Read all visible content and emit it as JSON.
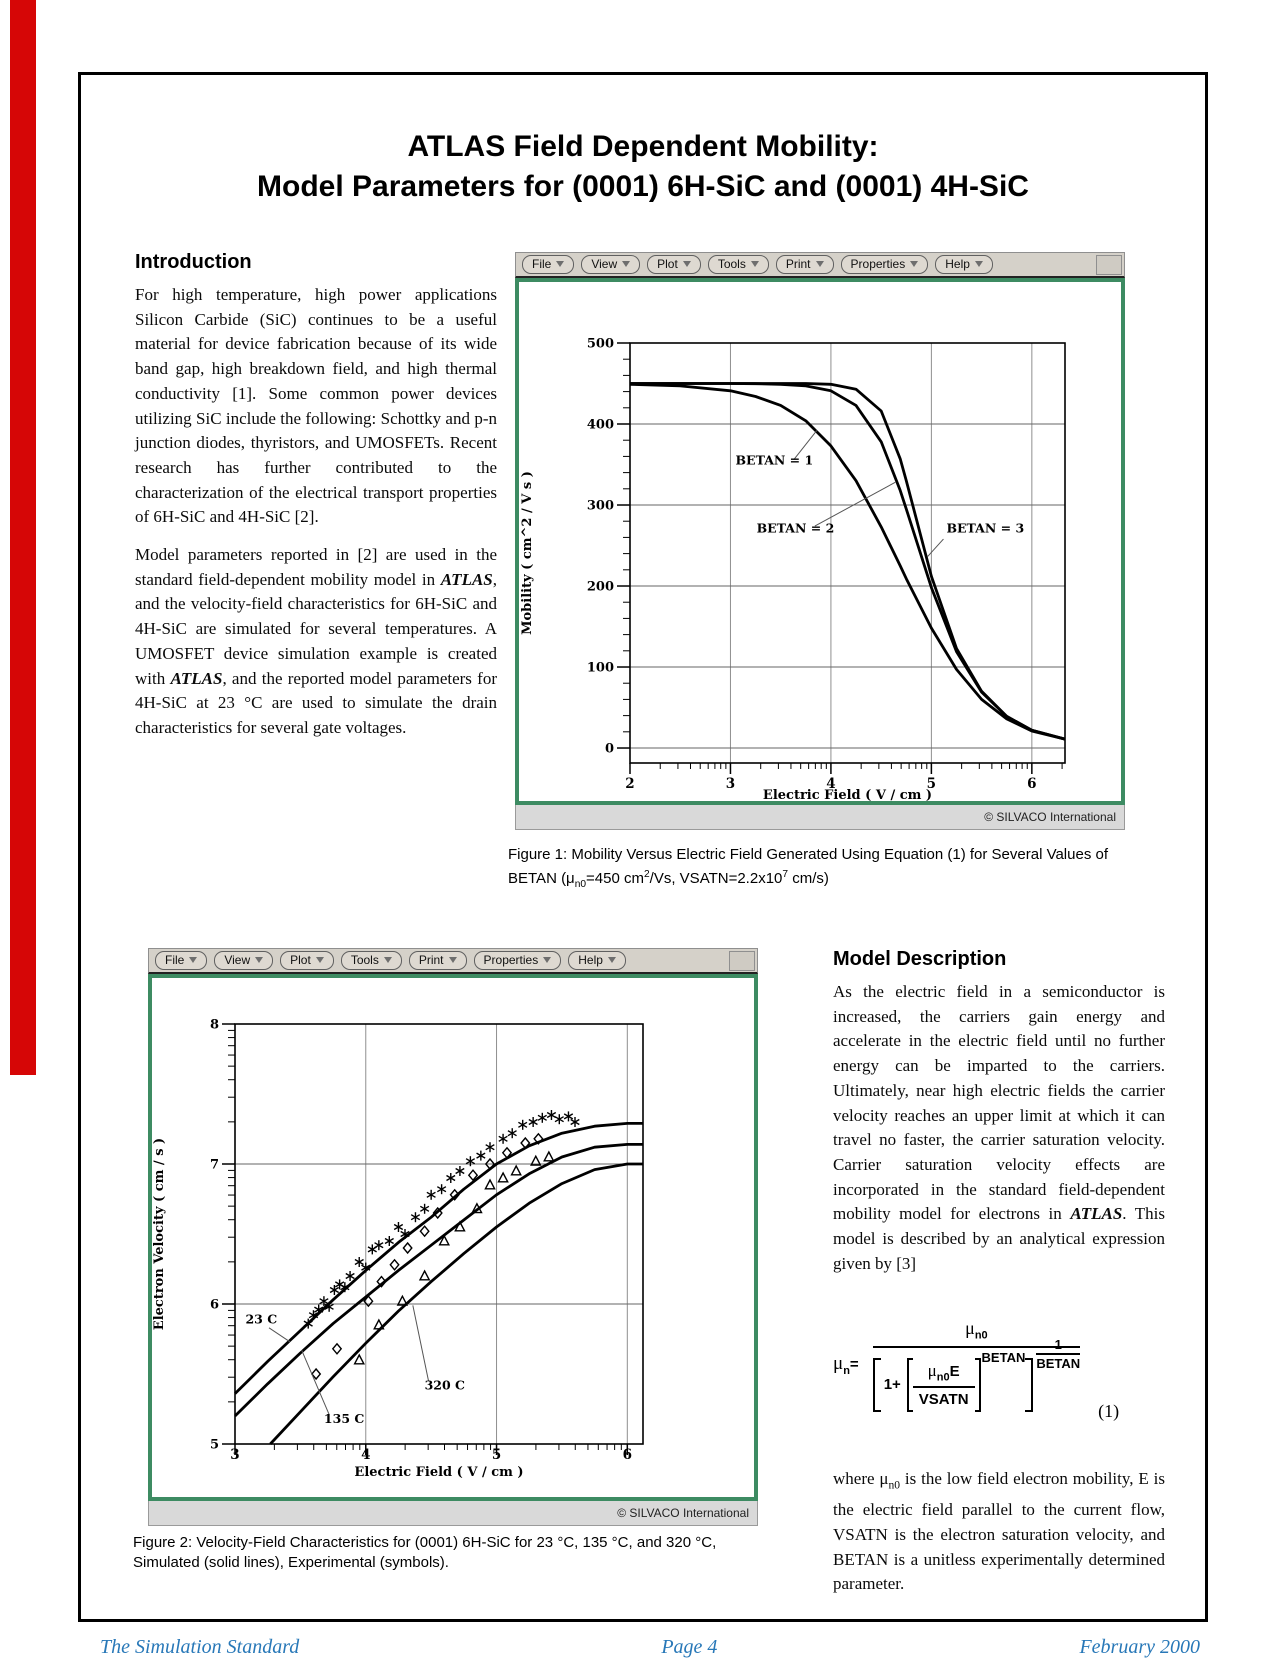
{
  "page": {
    "title1": "ATLAS Field Dependent Mobility:",
    "title2": "Model Parameters for (0001) 6H-SiC and (0001) 4H-SiC",
    "footer": {
      "left": "The Simulation Standard",
      "center": "Page 4",
      "right": "February 2000"
    }
  },
  "intro": {
    "heading": "Introduction",
    "p1": "For high temperature, high power applications Silicon Carbide (SiC) continues to be a useful material for device fabrication because of its wide band gap, high breakdown field, and high thermal conductivity [1].  Some common power devices utilizing SiC include the following:  Schottky and p-n junction diodes, thyristors, and UMOSFETs.  Recent research has further contributed to the characterization of the electrical transport properties of 6H-SiC and 4H-SiC [2].",
    "p2": [
      "Model parameters reported in [2] are used in the standard field-dependent mobility model in ",
      {
        "t": "ATLAS",
        "b": true
      },
      ", and the velocity-field characteristics for 6H-SiC and 4H-SiC are simulated for several temperatures. A UMOSFET device simulation example is created with ",
      {
        "t": "ATLAS",
        "b": true
      },
      ", and the reported model parameters for 4H-SiC at 23 °C are used to simulate the drain characteristics for several gate voltages."
    ]
  },
  "model": {
    "heading": "Model Description",
    "p1": [
      "As the electric field in a semiconductor is increased, the carriers gain energy and accelerate in the electric field until no further energy can be imparted to the carriers. Ultimately, near high electric fields the carrier velocity reaches an upper limit at which it can travel no faster, the carrier saturation velocity. Carrier saturation velocity effects are incorporated in the standard field-dependent mobility model for electrons in ",
      {
        "t": "ATLAS",
        "b": true
      },
      ".  This model is described by an analytical expression given by [3]"
    ],
    "where": [
      "where μ",
      {
        "t": "n0",
        "sub": true
      },
      " is the low field electron mobility, E is the electric field parallel to the current flow, VSATN is the electron saturation velocity, and BETAN is a unitless experimentally determined parameter."
    ]
  },
  "equation": {
    "mu": "μ",
    "n": "n",
    "equals": "=",
    "n0": "n0",
    "one_plus": "1+",
    "E": "E",
    "vsatn": "VSATN",
    "betan": "BETAN",
    "one": "1",
    "number": "(1)"
  },
  "plot_window": {
    "menus": [
      "File",
      "View",
      "Plot",
      "Tools",
      "Print",
      "Properties",
      "Help"
    ],
    "status": "© SILVACO International"
  },
  "captions": {
    "fig1": [
      "Figure 1: Mobility Versus Electric Field Generated Using Equation (1) for Several Values of BETAN  (μ",
      {
        "t": "n0",
        "sub": true
      },
      "=450 cm",
      {
        "t": "2",
        "sup": true
      },
      "/Vs, VSATN=2.2x10",
      {
        "t": "7",
        "sup": true
      },
      " cm/s)"
    ],
    "fig2": "Figure 2: Velocity-Field Characteristics for (0001) 6H-SiC for 23 °C, 135 °C, and 320 °C, Simulated (solid lines), Experimental (symbols)."
  },
  "chart_data": [
    {
      "type": "line",
      "title": "Mobility versus electric field for several values of BETAN",
      "xlabel": "Electric Field ( V / cm )",
      "ylabel": "Mobility ( cm^2 / V s )",
      "x_scale": "log10",
      "xlim": [
        2,
        6.33
      ],
      "ylim": [
        -18.5,
        500
      ],
      "xticks": [
        2,
        3,
        4,
        5,
        6
      ],
      "yticks": [
        0,
        100,
        200,
        300,
        400,
        500
      ],
      "y_minor": "linear",
      "y_minor_step": 20,
      "x": [
        2,
        2.5,
        3,
        3.25,
        3.5,
        3.75,
        4,
        4.25,
        4.5,
        4.69,
        4.75,
        5,
        5.25,
        5.5,
        5.75,
        6,
        6.33
      ],
      "series": [
        {
          "name": "BETAN = 1",
          "values": [
            449,
            447,
            441,
            434,
            423,
            404,
            373,
            330,
            273,
            225,
            209,
            148,
            97,
            60,
            36,
            21,
            11
          ]
        },
        {
          "name": "BETAN = 2",
          "values": [
            450,
            450,
            450,
            449.7,
            449,
            447,
            441,
            423,
            378,
            318,
            295,
            198,
            119,
            69,
            39,
            22,
            11
          ]
        },
        {
          "name": "BETAN = 3",
          "values": [
            450,
            450,
            450,
            450,
            450,
            450,
            449,
            443,
            416,
            357,
            330,
            212,
            123,
            70,
            39,
            22,
            11
          ]
        }
      ],
      "annotations": [
        {
          "text": "BETAN = 1",
          "tx": 3.05,
          "ty": 350,
          "line": [
            3.63,
            356,
            3.86,
            392
          ]
        },
        {
          "text": "BETAN = 2",
          "tx": 3.26,
          "ty": 266,
          "line": [
            3.84,
            274,
            4.64,
            328
          ]
        },
        {
          "text": "BETAN = 3",
          "tx": 5.15,
          "ty": 266,
          "line": [
            5.12,
            258,
            4.96,
            236
          ]
        }
      ]
    },
    {
      "type": "line",
      "title": "Velocity-field characteristics for (0001) 6H-SiC",
      "xlabel": "Electric Field ( V / cm )",
      "ylabel": "Electron Velocity ( cm / s )",
      "x_scale": "log10",
      "y_scale": "log10",
      "xlim": [
        3,
        6.12
      ],
      "ylim": [
        5,
        8
      ],
      "xticks": [
        3,
        4,
        5,
        6
      ],
      "yticks": [
        5,
        6,
        7,
        8
      ],
      "y_minor": "log",
      "series": [
        {
          "name": "23 C",
          "symbol": "asterisk",
          "x": [
            3.0,
            3.25,
            3.5,
            3.75,
            4.0,
            4.25,
            4.5,
            4.75,
            5.0,
            5.25,
            5.5,
            5.75,
            6.0,
            6.12
          ],
          "y": [
            5.36,
            5.59,
            5.81,
            6.03,
            6.24,
            6.44,
            6.62,
            6.82,
            7.0,
            7.13,
            7.22,
            7.27,
            7.29,
            7.29
          ],
          "points": [
            [
              3.56,
              5.86
            ],
            [
              3.6,
              5.92
            ],
            [
              3.64,
              5.96
            ],
            [
              3.68,
              6.02
            ],
            [
              3.72,
              5.98
            ],
            [
              3.76,
              6.1
            ],
            [
              3.8,
              6.14
            ],
            [
              3.84,
              6.12
            ],
            [
              3.88,
              6.2
            ],
            [
              3.95,
              6.3
            ],
            [
              4.0,
              6.26
            ],
            [
              4.05,
              6.39
            ],
            [
              4.1,
              6.42
            ],
            [
              4.18,
              6.45
            ],
            [
              4.25,
              6.55
            ],
            [
              4.3,
              6.5
            ],
            [
              4.38,
              6.62
            ],
            [
              4.45,
              6.68
            ],
            [
              4.5,
              6.78
            ],
            [
              4.58,
              6.82
            ],
            [
              4.65,
              6.9
            ],
            [
              4.72,
              6.95
            ],
            [
              4.8,
              7.02
            ],
            [
              4.88,
              7.06
            ],
            [
              4.95,
              7.12
            ],
            [
              5.05,
              7.18
            ],
            [
              5.12,
              7.22
            ],
            [
              5.2,
              7.28
            ],
            [
              5.28,
              7.3
            ],
            [
              5.35,
              7.33
            ],
            [
              5.42,
              7.35
            ],
            [
              5.48,
              7.32
            ],
            [
              5.55,
              7.34
            ],
            [
              5.6,
              7.3
            ]
          ]
        },
        {
          "name": "135 C",
          "symbol": "diamond",
          "x": [
            3.0,
            3.25,
            3.5,
            3.75,
            4.0,
            4.25,
            4.5,
            4.75,
            5.0,
            5.25,
            5.5,
            5.75,
            6.0,
            6.12
          ],
          "y": [
            5.2,
            5.43,
            5.65,
            5.86,
            6.05,
            6.24,
            6.42,
            6.6,
            6.78,
            6.93,
            7.05,
            7.12,
            7.14,
            7.14
          ],
          "points": [
            [
              3.62,
              5.5
            ],
            [
              3.78,
              5.68
            ],
            [
              4.02,
              6.02
            ],
            [
              4.12,
              6.16
            ],
            [
              4.22,
              6.28
            ],
            [
              4.32,
              6.4
            ],
            [
              4.45,
              6.52
            ],
            [
              4.55,
              6.65
            ],
            [
              4.68,
              6.78
            ],
            [
              4.82,
              6.92
            ],
            [
              4.95,
              7.0
            ],
            [
              5.08,
              7.08
            ],
            [
              5.22,
              7.15
            ],
            [
              5.32,
              7.18
            ]
          ]
        },
        {
          "name": "320 C",
          "symbol": "triangle",
          "x": [
            3.27,
            3.5,
            3.75,
            4.0,
            4.25,
            4.5,
            4.75,
            5.0,
            5.25,
            5.5,
            5.75,
            6.0,
            6.12
          ],
          "y": [
            5.0,
            5.23,
            5.48,
            5.72,
            5.95,
            6.16,
            6.36,
            6.55,
            6.72,
            6.86,
            6.96,
            7.0,
            7.0
          ],
          "points": [
            [
              3.95,
              5.6
            ],
            [
              4.1,
              5.85
            ],
            [
              4.28,
              6.02
            ],
            [
              4.45,
              6.2
            ],
            [
              4.6,
              6.45
            ],
            [
              4.72,
              6.55
            ],
            [
              4.85,
              6.68
            ],
            [
              4.95,
              6.85
            ],
            [
              5.05,
              6.9
            ],
            [
              5.15,
              6.95
            ],
            [
              5.3,
              7.02
            ],
            [
              5.4,
              7.05
            ]
          ]
        }
      ],
      "annotations": [
        {
          "text": "23 C",
          "tx": 3.08,
          "ty": 5.86,
          "line": [
            3.26,
            5.83,
            3.42,
            5.73
          ]
        },
        {
          "text": "135 C",
          "tx": 3.68,
          "ty": 5.15,
          "line": [
            3.72,
            5.21,
            3.51,
            5.67
          ]
        },
        {
          "text": "320 C",
          "tx": 4.45,
          "ty": 5.39,
          "line": [
            4.48,
            5.45,
            4.36,
            5.99
          ]
        }
      ]
    }
  ]
}
